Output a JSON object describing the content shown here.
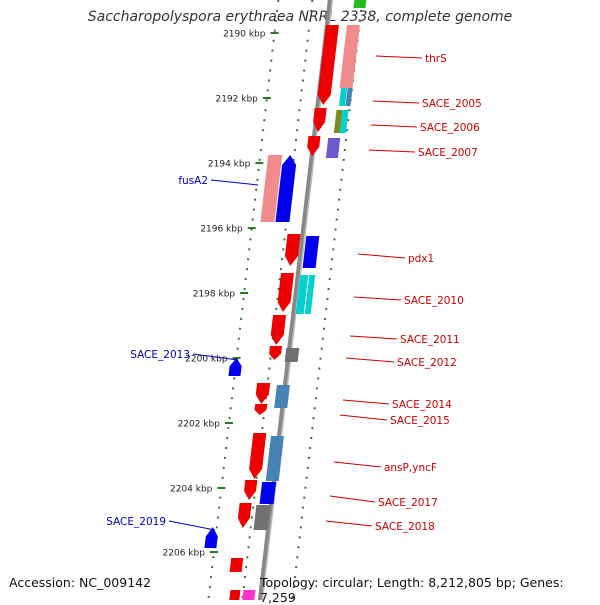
{
  "title": "Saccharopolyspora erythraea NRRL 2338, complete genome",
  "accession": "Accession: NC_009142",
  "summary": "Topology: circular; Length: 8,212,805 bp; Genes: 7,259",
  "ruler_ticks": [
    "2190 kbp",
    "2192 kbp",
    "2194 kbp",
    "2196 kbp",
    "2198 kbp",
    "2200 kbp",
    "2202 kbp",
    "2204 kbp",
    "2206 kbp"
  ],
  "colors": {
    "backbone": "#888888",
    "red": "#ee0000",
    "pink": "#f08c8c",
    "blue": "#0000ee",
    "cyan": "#00d0d0",
    "green": "#22bb22",
    "olive": "#7a8a1e",
    "purple": "#6a5acd",
    "steelblue": "#4682b4",
    "gray": "#707070",
    "magenta": "#ff33cc",
    "tick": "#2a7a2a",
    "label_red": "#cc0000",
    "label_blue": "#0000bb"
  },
  "labels": [
    {
      "text": "thrS",
      "side": "right"
    },
    {
      "text": "SACE_2005",
      "side": "right"
    },
    {
      "text": "SACE_2006",
      "side": "right"
    },
    {
      "text": "SACE_2007",
      "side": "right"
    },
    {
      "text": "fusA2",
      "side": "left"
    },
    {
      "text": "pdx1",
      "side": "right"
    },
    {
      "text": "SACE_2010",
      "side": "right"
    },
    {
      "text": "SACE_2011",
      "side": "right"
    },
    {
      "text": "SACE_2013",
      "side": "left"
    },
    {
      "text": "SACE_2012",
      "side": "right"
    },
    {
      "text": "SACE_2014",
      "side": "right"
    },
    {
      "text": "SACE_2015",
      "side": "right"
    },
    {
      "text": "ansP,yncF",
      "side": "right"
    },
    {
      "text": "SACE_2017",
      "side": "right"
    },
    {
      "text": "SACE_2019",
      "side": "left"
    },
    {
      "text": "SACE_2018",
      "side": "right"
    }
  ]
}
